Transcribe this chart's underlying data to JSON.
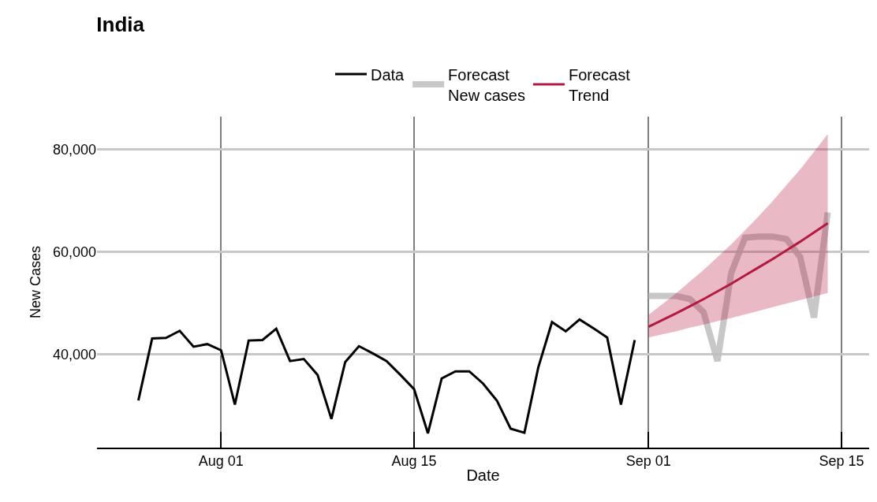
{
  "chart_data": {
    "type": "line",
    "title": "India",
    "xlabel": "Date",
    "ylabel": "New Cases",
    "legend": "top",
    "grid": true,
    "line_style": "solid",
    "marker": "none",
    "xlim": [
      "--07-23",
      "--09-17"
    ],
    "xticks": [
      {
        "value": "--08-01",
        "label": "Aug 01"
      },
      {
        "value": "--08-15",
        "label": "Aug 15"
      },
      {
        "value": "--09-01",
        "label": "Sep 01"
      },
      {
        "value": "--09-15",
        "label": "Sep 15"
      }
    ],
    "ylim": [
      21800,
      86400
    ],
    "yticks": [
      {
        "value": 40000,
        "label": "40,000"
      },
      {
        "value": 60000,
        "label": "60,000"
      },
      {
        "value": 80000,
        "label": "80,000"
      }
    ],
    "series": [
      {
        "name": "Data",
        "color": "#000000",
        "x": [
          "--07-26",
          "--07-27",
          "--07-28",
          "--07-29",
          "--07-30",
          "--07-31",
          "--08-01",
          "--08-02",
          "--08-03",
          "--08-04",
          "--08-05",
          "--08-06",
          "--08-07",
          "--08-08",
          "--08-09",
          "--08-10",
          "--08-11",
          "--08-12",
          "--08-13",
          "--08-14",
          "--08-15",
          "--08-16",
          "--08-17",
          "--08-18",
          "--08-19",
          "--08-20",
          "--08-21",
          "--08-22",
          "--08-23",
          "--08-24",
          "--08-25",
          "--08-26",
          "--08-27",
          "--08-28",
          "--08-29",
          "--08-30",
          "--08-31"
        ],
        "values": [
          31000,
          43100,
          43200,
          44600,
          41500,
          42000,
          40800,
          30200,
          42700,
          42800,
          45000,
          38700,
          39100,
          36000,
          27400,
          38500,
          41600,
          40200,
          38700,
          36000,
          33200,
          24600,
          35300,
          36700,
          36700,
          34300,
          31000,
          25500,
          24700,
          37400,
          46300,
          44500,
          46800,
          45100,
          43300,
          30200,
          42800
        ]
      },
      {
        "name": "Forecast\nNew cases",
        "color": "#bebebe",
        "x": [
          "--09-01",
          "--09-02",
          "--09-03",
          "--09-04",
          "--09-05",
          "--09-06",
          "--09-07",
          "--09-08",
          "--09-09",
          "--09-10",
          "--09-11",
          "--09-12",
          "--09-13",
          "--09-14"
        ],
        "values": [
          51400,
          51400,
          51400,
          50800,
          48200,
          38700,
          55900,
          62800,
          63000,
          63000,
          62500,
          59000,
          47200,
          67700
        ]
      },
      {
        "name": "Forecast\nTrend",
        "color": "#b5193f",
        "x": [
          "--09-01",
          "--09-02",
          "--09-03",
          "--09-04",
          "--09-05",
          "--09-06",
          "--09-07",
          "--09-08",
          "--09-09",
          "--09-10",
          "--09-11",
          "--09-12",
          "--09-13",
          "--09-14"
        ],
        "values": [
          45400,
          46700,
          48000,
          49400,
          50800,
          52300,
          53800,
          55400,
          57000,
          58600,
          60300,
          62000,
          63800,
          65600
        ],
        "lower": [
          43300,
          43900,
          44500,
          45200,
          45800,
          46500,
          47100,
          47800,
          48500,
          49200,
          49900,
          50600,
          51300,
          52000
        ],
        "upper": [
          47700,
          49800,
          51900,
          54200,
          56500,
          59000,
          61500,
          64200,
          67000,
          69900,
          73000,
          76100,
          79500,
          83000
        ]
      }
    ]
  }
}
